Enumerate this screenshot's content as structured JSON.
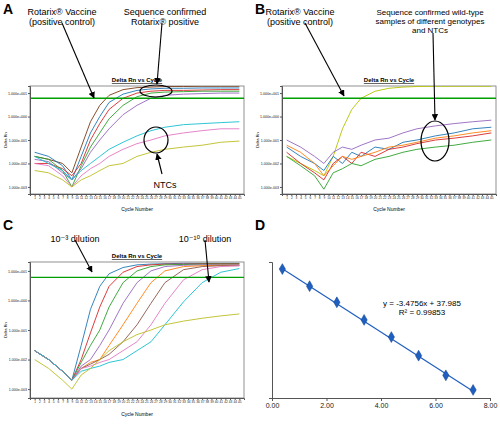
{
  "chart_data": [
    {
      "panel": "A",
      "type": "line",
      "title": "Delta Rn vs Cycle",
      "x_label": "Cycle Number",
      "y_label": "Delta Rn",
      "log": "y",
      "xlim": [
        0,
        46
      ],
      "xticks": [
        1,
        2,
        3,
        4,
        5,
        6,
        7,
        8,
        9,
        10,
        11,
        12,
        13,
        14,
        15,
        16,
        17,
        18,
        19,
        20,
        21,
        22,
        23,
        24,
        25,
        26,
        27,
        28,
        29,
        30,
        31,
        32,
        33,
        34,
        35,
        36,
        37,
        38,
        39,
        40,
        41,
        42,
        43,
        44,
        45
      ],
      "ylim": [
        0.0005,
        20
      ],
      "yticks": [
        {
          "value": 10,
          "label": "1.000e+001"
        },
        {
          "value": 1,
          "label": "1.000e+000"
        },
        {
          "value": 0.1,
          "label": "1.000e-001"
        },
        {
          "value": 0.01,
          "label": "1.000e-002"
        },
        {
          "value": 0.001,
          "label": "1.000e-003"
        }
      ],
      "threshold": 6,
      "x": [
        1,
        4,
        7,
        9,
        11,
        13,
        15,
        17,
        20,
        23,
        26,
        29,
        33,
        37,
        41,
        45
      ],
      "series": [
        {
          "color": "#7a3b16",
          "values": [
            0.02,
            0.015,
            0.01,
            0.004,
            0.05,
            0.6,
            3,
            8,
            14,
            17,
            18,
            19,
            19,
            19.5,
            19.5,
            19.5
          ]
        },
        {
          "color": "#1f77b4",
          "values": [
            0.03,
            0.02,
            0.008,
            0.002,
            0.02,
            0.2,
            1,
            4,
            9,
            13,
            15,
            16,
            16,
            16.5,
            16.5,
            16.5
          ]
        },
        {
          "color": "#d62728",
          "values": [
            0.01,
            0.01,
            0.006,
            0.003,
            0.01,
            0.1,
            0.5,
            2,
            6,
            10,
            12,
            13,
            13,
            13.5,
            14,
            14
          ]
        },
        {
          "color": "#2ca02c",
          "values": [
            0.02,
            0.015,
            0.005,
            0.001,
            0.008,
            0.05,
            0.2,
            0.8,
            3,
            7,
            10,
            11,
            11.5,
            12,
            12,
            12
          ]
        },
        {
          "color": "#9467bd",
          "values": [
            0.015,
            0.012,
            0.004,
            0.002,
            0.006,
            0.03,
            0.1,
            0.3,
            1.2,
            3,
            6,
            8,
            9,
            9.5,
            10,
            10
          ]
        },
        {
          "color": "#17becf",
          "values": [
            0.02,
            0.01,
            0.005,
            0.002,
            0.005,
            0.01,
            0.02,
            0.04,
            0.08,
            0.15,
            0.25,
            0.35,
            0.45,
            0.5,
            0.55,
            0.6
          ]
        },
        {
          "color": "#e377c2",
          "values": [
            0.01,
            0.008,
            0.003,
            0.001,
            0.003,
            0.006,
            0.01,
            0.02,
            0.04,
            0.07,
            0.1,
            0.15,
            0.2,
            0.25,
            0.3,
            0.3
          ]
        },
        {
          "color": "#bcbd22",
          "values": [
            0.005,
            0.004,
            0.002,
            0.001,
            0.002,
            0.003,
            0.005,
            0.008,
            0.01,
            0.02,
            0.03,
            0.04,
            0.05,
            0.06,
            0.08,
            0.09
          ]
        }
      ],
      "annotations": [
        {
          "text": [
            "Rotarix® Vaccine",
            "(positive control)"
          ]
        },
        {
          "text": [
            "Sequence confirmed",
            "Rotarix® positive"
          ]
        },
        {
          "text": [
            "NTCs"
          ]
        }
      ]
    },
    {
      "panel": "B",
      "type": "line",
      "title": "Delta Rn vs Cycle",
      "x_label": "Cycle Number",
      "y_label": "Delta Rn",
      "log": "y",
      "xlim": [
        0,
        46
      ],
      "xticks": [
        1,
        2,
        3,
        4,
        5,
        6,
        7,
        8,
        9,
        10,
        11,
        12,
        13,
        14,
        15,
        16,
        17,
        18,
        19,
        20,
        21,
        22,
        23,
        24,
        25,
        26,
        27,
        28,
        29,
        30,
        31,
        32,
        33,
        34,
        35,
        36,
        37,
        38,
        39,
        40,
        41,
        42,
        43,
        44,
        45
      ],
      "ylim": [
        0.0005,
        20
      ],
      "yticks": [
        {
          "value": 10,
          "label": "1.000e+001"
        },
        {
          "value": 1,
          "label": "1.000e+000"
        },
        {
          "value": 0.1,
          "label": "1.000e-001"
        },
        {
          "value": 0.01,
          "label": "1.000e-002"
        },
        {
          "value": 0.001,
          "label": "1.000e-003"
        }
      ],
      "threshold": 6,
      "x": [
        1,
        4,
        7,
        9,
        11,
        13,
        15,
        17,
        20,
        23,
        26,
        29,
        33,
        37,
        41,
        45
      ],
      "series": [
        {
          "color": "#b5c400",
          "values": [
            0.02,
            0.01,
            0.005,
            0.003,
            0.02,
            0.3,
            2,
            6,
            12,
            16,
            18,
            19,
            19.5,
            19.5,
            19.5,
            19.5
          ]
        },
        {
          "color": "#1f77b4",
          "values": [
            0.05,
            0.02,
            0.01,
            0.005,
            0.02,
            0.01,
            0.03,
            0.02,
            0.05,
            0.04,
            0.08,
            0.1,
            0.15,
            0.2,
            0.3,
            0.35
          ]
        },
        {
          "color": "#d62728",
          "values": [
            0.03,
            0.01,
            0.004,
            0.002,
            0.01,
            0.02,
            0.01,
            0.03,
            0.02,
            0.04,
            0.05,
            0.07,
            0.1,
            0.12,
            0.15,
            0.2
          ]
        },
        {
          "color": "#9467bd",
          "values": [
            0.1,
            0.05,
            0.02,
            0.01,
            0.03,
            0.05,
            0.04,
            0.06,
            0.1,
            0.12,
            0.2,
            0.3,
            0.4,
            0.5,
            0.6,
            0.7
          ]
        },
        {
          "color": "#2ca02c",
          "values": [
            0.02,
            0.008,
            0.003,
            0.0008,
            0.004,
            0.006,
            0.01,
            0.008,
            0.015,
            0.02,
            0.03,
            0.04,
            0.05,
            0.06,
            0.08,
            0.1
          ]
        },
        {
          "color": "#ff7f0e",
          "values": [
            0.06,
            0.03,
            0.01,
            0.003,
            0.008,
            0.02,
            0.015,
            0.02,
            0.03,
            0.05,
            0.06,
            0.08,
            0.12,
            0.15,
            0.2,
            0.25
          ]
        }
      ],
      "annotations": [
        {
          "text": [
            "Rotarix® Vaccine",
            "(positive control)"
          ]
        },
        {
          "text": [
            "Sequence confirmed wild-type",
            "samples of different genotypes",
            "and NTCs"
          ]
        }
      ]
    },
    {
      "panel": "C",
      "type": "line",
      "title": "Delta Rn vs Cycle",
      "x_label": "Cycle Number",
      "y_label": "Delta Rn",
      "log": "y",
      "xlim": [
        0,
        46
      ],
      "xticks": [
        1,
        2,
        3,
        4,
        5,
        6,
        7,
        8,
        9,
        10,
        11,
        12,
        13,
        14,
        15,
        16,
        17,
        18,
        19,
        20,
        21,
        22,
        23,
        24,
        25,
        26,
        27,
        28,
        29,
        30,
        31,
        32,
        33,
        34,
        35,
        36,
        37,
        38,
        39,
        40,
        41,
        42,
        43,
        44,
        45
      ],
      "ylim": [
        0.0005,
        20
      ],
      "yticks": [
        {
          "value": 10,
          "label": "1.000e+001"
        },
        {
          "value": 1,
          "label": "1.000e+000"
        },
        {
          "value": 0.1,
          "label": "1.000e-001"
        },
        {
          "value": 0.01,
          "label": "1.000e-002"
        },
        {
          "value": 0.001,
          "label": "1.000e-003"
        }
      ],
      "threshold": 6,
      "x": [
        1,
        4,
        7,
        9,
        11,
        13,
        15,
        17,
        20,
        23,
        26,
        29,
        33,
        37,
        41,
        45
      ],
      "series": [
        {
          "color": "#1f77b4",
          "values": [
            0.02,
            0.01,
            0.004,
            0.002,
            0.03,
            0.5,
            3,
            8,
            13,
            16,
            17,
            17.5,
            18,
            18,
            18,
            18
          ]
        },
        {
          "color": "#d62728",
          "values": [
            0.02,
            0.01,
            0.004,
            0.002,
            0.01,
            0.08,
            0.6,
            3,
            9,
            14,
            16,
            17,
            17,
            17.5,
            17.5,
            17.5
          ]
        },
        {
          "color": "#2ca02c",
          "values": [
            0.02,
            0.01,
            0.004,
            0.002,
            0.008,
            0.03,
            0.1,
            0.6,
            4,
            10,
            14,
            16,
            16.5,
            17,
            17,
            17
          ]
        },
        {
          "color": "#9467bd",
          "values": [
            0.02,
            0.01,
            0.004,
            0.002,
            0.006,
            0.01,
            0.03,
            0.1,
            0.8,
            4,
            10,
            14,
            15.5,
            16,
            16,
            16
          ]
        },
        {
          "color": "#ff7f0e",
          "values": [
            0.02,
            0.01,
            0.004,
            0.002,
            0.005,
            0.008,
            0.01,
            0.03,
            0.15,
            0.8,
            4,
            10,
            14,
            15,
            15.5,
            15.5
          ]
        },
        {
          "color": "#8c564b",
          "values": [
            0.02,
            0.01,
            0.004,
            0.002,
            0.005,
            0.007,
            0.01,
            0.015,
            0.04,
            0.15,
            0.8,
            4,
            11,
            14,
            15,
            15
          ]
        },
        {
          "color": "#e377c2",
          "values": [
            0.02,
            0.01,
            0.004,
            0.002,
            0.005,
            0.006,
            0.008,
            0.01,
            0.02,
            0.04,
            0.15,
            0.8,
            5,
            11,
            14,
            15
          ]
        },
        {
          "color": "#17becf",
          "values": [
            0.02,
            0.01,
            0.004,
            0.002,
            0.004,
            0.005,
            0.006,
            0.008,
            0.01,
            0.02,
            0.04,
            0.15,
            0.9,
            4,
            9,
            12
          ]
        },
        {
          "color": "#bcbd22",
          "values": [
            0.01,
            0.005,
            0.002,
            0.001,
            0.003,
            0.005,
            0.01,
            0.02,
            0.04,
            0.07,
            0.1,
            0.15,
            0.2,
            0.25,
            0.3,
            0.35
          ]
        }
      ],
      "annotations": [
        {
          "text": [
            "10⁻³ dilution"
          ]
        },
        {
          "text": [
            "10⁻¹⁰ dilution"
          ]
        }
      ]
    },
    {
      "panel": "D",
      "type": "scatter",
      "marker": "diamond",
      "color": "#1f5fbf",
      "tick_labels": "x",
      "xlim": [
        0,
        8
      ],
      "xticks": [
        {
          "value": 0,
          "label": "0.00"
        },
        {
          "value": 2,
          "label": "2.00"
        },
        {
          "value": 4,
          "label": "4.00"
        },
        {
          "value": 6,
          "label": "6.00"
        },
        {
          "value": 8,
          "label": "8.00"
        }
      ],
      "ylim": [
        11,
        38
      ],
      "x": [
        0.38,
        1.38,
        2.38,
        3.38,
        4.38,
        5.38,
        6.38,
        7.38
      ],
      "values": [
        36.6,
        33.2,
        30.0,
        26.5,
        23.1,
        19.4,
        15.5,
        12.6
      ],
      "trendline": {
        "x": [
          0.38,
          7.38
        ],
        "values": [
          36.66,
          12.34
        ]
      },
      "annotations": [
        {
          "text": [
            "y = -3.4756x + 37.985",
            "R² = 0.99853"
          ]
        }
      ]
    }
  ]
}
